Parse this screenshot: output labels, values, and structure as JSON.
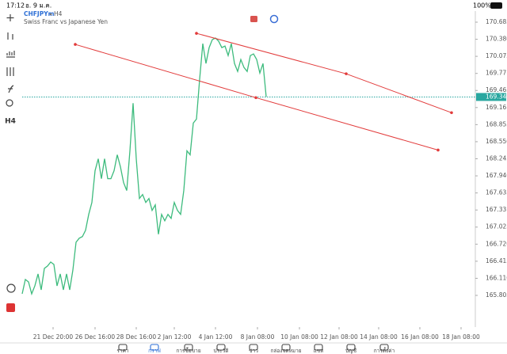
{
  "status_bar": {
    "time": "17:12",
    "date": "อ. 9 ม.ค.",
    "battery": "100%"
  },
  "toolbar": {
    "timeframe": "H4"
  },
  "chart_data": {
    "type": "line",
    "title": "CHFJPYm",
    "period": "H4",
    "subtitle": "Swiss Franc vs Japanese Yen",
    "x": [
      0,
      1,
      2,
      3,
      4,
      5,
      6,
      7,
      8,
      9,
      10,
      11,
      12,
      13,
      14,
      15,
      16,
      17,
      18,
      19,
      20,
      21,
      22,
      23,
      24,
      25,
      26,
      27,
      28,
      29,
      30,
      31,
      32,
      33,
      34,
      35,
      36,
      37,
      38,
      39,
      40,
      41,
      42,
      43,
      44,
      45,
      46,
      47,
      48,
      49,
      50,
      51,
      52,
      53,
      54,
      55,
      56,
      57,
      58,
      59,
      60,
      61,
      62,
      63,
      64,
      65,
      66,
      67,
      68,
      69,
      70,
      71,
      72,
      73,
      74,
      75,
      76,
      77
    ],
    "series": [
      {
        "color": "#3dbb7d",
        "values": [
          165.833,
          166.089,
          166.046,
          165.833,
          165.975,
          166.188,
          165.904,
          166.287,
          166.33,
          166.401,
          166.358,
          165.975,
          166.188,
          165.904,
          166.188,
          165.904,
          166.259,
          166.755,
          166.826,
          166.855,
          166.968,
          167.252,
          167.465,
          168.032,
          168.245,
          167.89,
          168.245,
          167.89,
          167.89,
          168.032,
          168.316,
          168.103,
          167.819,
          167.678,
          168.387,
          169.238,
          168.245,
          167.536,
          167.607,
          167.465,
          167.536,
          167.323,
          167.422,
          166.897,
          167.252,
          167.138,
          167.252,
          167.181,
          167.465,
          167.323,
          167.252,
          167.678,
          168.387,
          168.316,
          168.883,
          168.954,
          169.664,
          170.302,
          169.947,
          170.231,
          170.373,
          170.401,
          170.345,
          170.231,
          170.259,
          170.089,
          170.302,
          169.947,
          169.805,
          170.018,
          169.876,
          169.805,
          170.089,
          170.118,
          170.018,
          169.777,
          169.947,
          169.352
        ]
      }
    ],
    "trendlines": [
      {
        "x": [
          55,
          102.25,
          135.5
        ],
        "values": [
          170.486,
          169.763,
          169.068
        ]
      },
      {
        "x": [
          16.75,
          73.75,
          131.25
        ],
        "values": [
          170.288,
          169.337,
          168.401
        ]
      }
    ],
    "trendline_color": "#e23b3b",
    "last_price": 169.349,
    "last_price_color": "#2aa7a0",
    "xlim": [
      0,
      143
    ],
    "xticks": [
      {
        "value": 9.75,
        "label": "21 Dec 20:00"
      },
      {
        "value": 23,
        "label": "26 Dec 16:00"
      },
      {
        "value": 36,
        "label": "28 Dec 16:00"
      },
      {
        "value": 48,
        "label": "2 Jan 12:00"
      },
      {
        "value": 61,
        "label": "4 Jan 12:00"
      },
      {
        "value": 74.25,
        "label": "8 Jan 08:00"
      },
      {
        "value": 87.5,
        "label": "10 Jan 08:00"
      },
      {
        "value": 100,
        "label": "12 Jan 08:00"
      },
      {
        "value": 112.5,
        "label": "14 Jan 08:00"
      },
      {
        "value": 125.5,
        "label": "16 Jan 08:00"
      },
      {
        "value": 138.5,
        "label": "18 Jan 08:00"
      }
    ],
    "ylim": [
      165.239,
      170.883
    ],
    "yticks": [
      170.685,
      {
        "value": 170.38,
        "label": "170.380"
      },
      170.075,
      169.77,
      169.465,
      169.16,
      168.855,
      {
        "value": 168.55,
        "label": "168.550"
      },
      168.245,
      {
        "value": 167.94,
        "label": "167.940"
      },
      167.635,
      167.33,
      167.025,
      {
        "value": 166.72,
        "label": "166.720"
      },
      166.415,
      {
        "value": 166.11,
        "label": "166.110"
      },
      165.805
    ]
  },
  "nav": {
    "active": 1,
    "items": [
      "ราคา",
      "กราฟ",
      "การซื้อขาย",
      "ประวัติ",
      "ข่าว",
      "กล่องจดหมาย",
      "แชท",
      "บัญชี",
      "การตั้งค่า"
    ]
  }
}
